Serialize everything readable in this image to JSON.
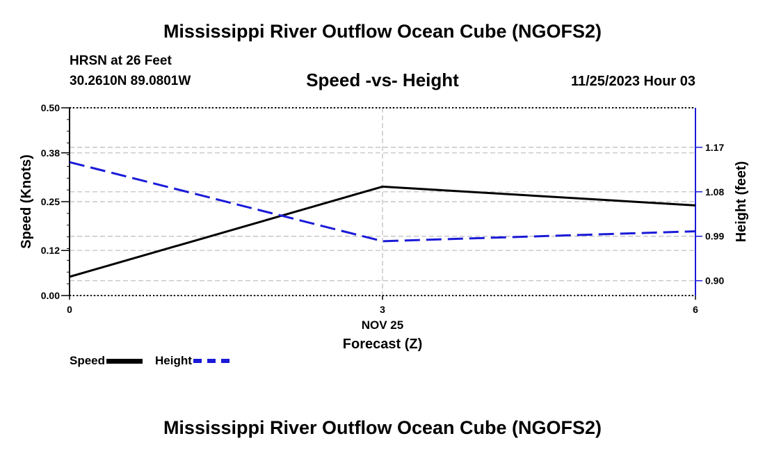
{
  "page": {
    "title_top": "Mississippi River Outflow Ocean Cube (NGOFS2)",
    "title_bottom": "Mississippi River Outflow Ocean Cube (NGOFS2)",
    "station": "HRSN at 26 Feet",
    "coords": "30.2610N  89.0801W",
    "subtitle": "Speed -vs- Height",
    "datetime": "11/25/2023 Hour 03"
  },
  "legend": {
    "speed_label": "Speed",
    "height_label": "Height"
  },
  "colors": {
    "speed": "#000000",
    "height": "#1a1ad8",
    "grid": "#bbbbbb"
  },
  "chart_data": {
    "type": "line",
    "title": "Speed -vs- Height",
    "xlabel": "Forecast (Z)",
    "xlabel_date": "NOV 25",
    "ylabel": "Speed (Knots)",
    "y2label": "Height (feet)",
    "x": [
      0,
      3,
      6
    ],
    "x_tick_labels": [
      "0",
      "3",
      "6"
    ],
    "xlim": [
      0,
      6
    ],
    "ylim": [
      0,
      0.5
    ],
    "y_ticks": [
      0.0,
      0.12,
      0.25,
      0.38,
      0.5
    ],
    "y_tick_labels": [
      "0.00",
      "0.12",
      "0.25",
      "0.38",
      "0.50"
    ],
    "y2lim": [
      0.87,
      1.25
    ],
    "y2_ticks": [
      0.9,
      0.99,
      1.08,
      1.17
    ],
    "y2_tick_labels": [
      "0.90",
      "0.99",
      "1.08",
      "1.17"
    ],
    "series": [
      {
        "name": "Speed",
        "axis": "left",
        "style": "solid",
        "values": [
          0.05,
          0.29,
          0.24
        ]
      },
      {
        "name": "Height",
        "axis": "right",
        "style": "dashed",
        "values": [
          1.14,
          0.98,
          1.0
        ]
      }
    ],
    "grid": true
  }
}
